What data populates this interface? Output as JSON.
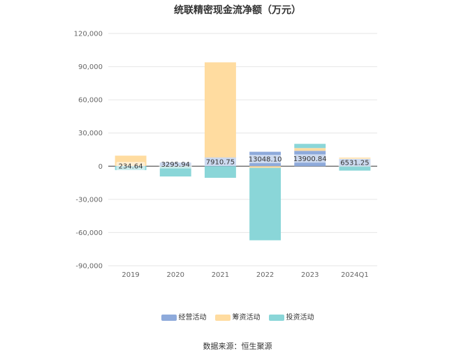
{
  "chart_data": {
    "type": "bar",
    "stacked": true,
    "title": "统联精密现金流净额（万元）",
    "categories": [
      "2019",
      "2020",
      "2021",
      "2022",
      "2023",
      "2024Q1"
    ],
    "series": [
      {
        "name": "经营活动",
        "color": "#8eaadb",
        "values": [
          234.64,
          3295.94,
          7910.75,
          13048.1,
          13900.84,
          6531.25
        ]
      },
      {
        "name": "筹资活动",
        "color": "#ffdca0",
        "values": [
          9300,
          -300,
          86000,
          -1500,
          2500,
          1200
        ]
      },
      {
        "name": "投资活动",
        "color": "#8ad6d8",
        "values": [
          -3500,
          -9000,
          -10500,
          -65500,
          3800,
          -4000
        ]
      }
    ],
    "data_labels": [
      "234.64",
      "3295.94",
      "7910.75",
      "13048.10",
      "13900.84",
      "6531.25"
    ],
    "ylim": [
      -90000,
      120000
    ],
    "yticks": [
      120000,
      90000,
      60000,
      30000,
      0,
      -30000,
      -60000,
      -90000
    ],
    "ytick_labels": [
      "120,000",
      "90,000",
      "60,000",
      "30,000",
      "0",
      "-30,000",
      "-60,000",
      "-90,000"
    ],
    "grid": true,
    "legend_position": "bottom"
  },
  "source": "数据来源：恒生聚源"
}
